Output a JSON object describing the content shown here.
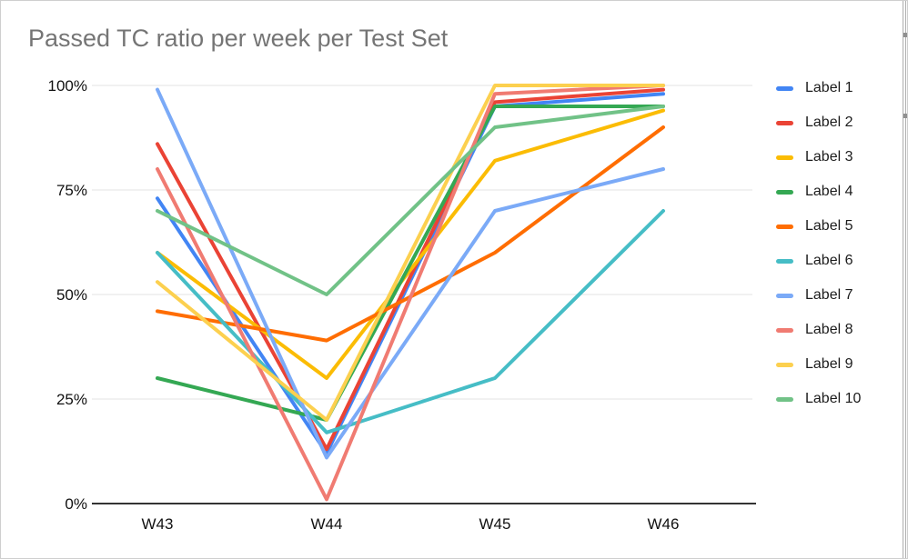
{
  "page": {
    "background": "#ffffff"
  },
  "chart_data": {
    "type": "line",
    "title": "Passed TC ratio per week per Test Set",
    "title_color": "#757575",
    "categories": [
      "W43",
      "W44",
      "W45",
      "W46"
    ],
    "y_ticks": [
      "0%",
      "25%",
      "50%",
      "75%",
      "100%"
    ],
    "y_tick_values": [
      0,
      25,
      50,
      75,
      100
    ],
    "ylim": [
      0,
      100
    ],
    "grid": true,
    "legend_position": "right",
    "series": [
      {
        "name": "Label 1",
        "color": "#4285F4",
        "values": [
          73,
          12,
          95,
          98
        ]
      },
      {
        "name": "Label 2",
        "color": "#EA4335",
        "values": [
          86,
          13,
          96,
          99
        ]
      },
      {
        "name": "Label 3",
        "color": "#FBBC04",
        "values": [
          60,
          30,
          82,
          94
        ]
      },
      {
        "name": "Label 4",
        "color": "#34A853",
        "values": [
          30,
          20,
          95,
          95
        ]
      },
      {
        "name": "Label 5",
        "color": "#FF6D01",
        "values": [
          46,
          39,
          60,
          90
        ]
      },
      {
        "name": "Label 6",
        "color": "#46BDC6",
        "values": [
          60,
          17,
          30,
          70
        ]
      },
      {
        "name": "Label 7",
        "color": "#7BAAF7",
        "values": [
          99,
          11,
          70,
          80
        ]
      },
      {
        "name": "Label 8",
        "color": "#F07B72",
        "values": [
          80,
          1,
          98,
          100
        ]
      },
      {
        "name": "Label 9",
        "color": "#FCD04F",
        "values": [
          53,
          20,
          100,
          100
        ]
      },
      {
        "name": "Label 10",
        "color": "#71C287",
        "values": [
          70,
          50,
          90,
          95
        ]
      }
    ]
  }
}
